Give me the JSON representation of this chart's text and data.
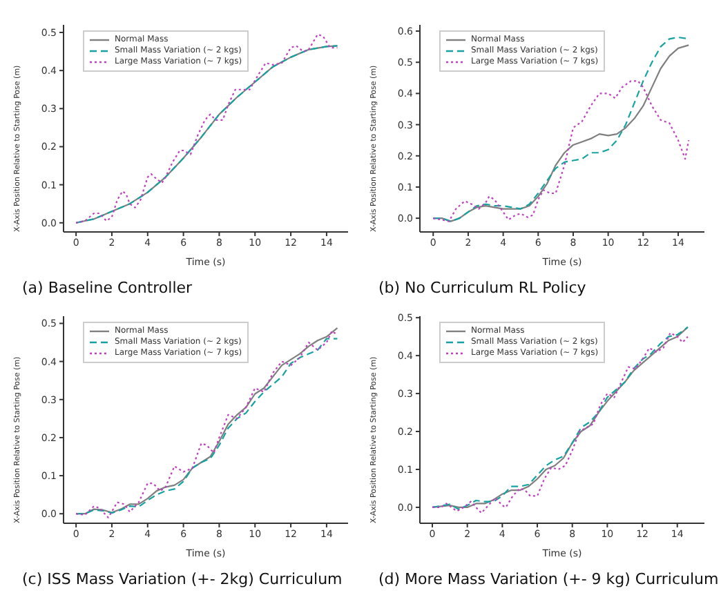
{
  "chart_data": [
    {
      "type": "line",
      "xlabel": "Time (s)",
      "ylabel": "X-Axis Position Relative to Starting Pose (m)",
      "annotations": [
        "(a) Baseline Controller"
      ],
      "xlim": [
        -0.7,
        15.2
      ],
      "ylim": [
        -0.024,
        0.52
      ],
      "xticks": [
        0,
        2,
        4,
        6,
        8,
        10,
        12,
        14
      ],
      "yticks": [
        {
          "value": 0,
          "label": "0.0"
        },
        {
          "value": 0.1,
          "label": "0.1"
        },
        {
          "value": 0.2,
          "label": "0.2"
        },
        {
          "value": 0.3,
          "label": "0.3"
        },
        {
          "value": 0.4,
          "label": "0.4"
        },
        {
          "value": 0.5,
          "label": "0.5"
        }
      ],
      "grid": false,
      "legend": "top left",
      "series": [
        {
          "name": "Normal Mass",
          "color": "#7f7f7f",
          "line_style": "solid",
          "x": [
            0,
            1,
            2,
            3,
            4,
            5,
            6,
            7,
            8,
            9,
            10,
            11,
            12,
            13,
            14,
            14.6
          ],
          "values": [
            0,
            0.01,
            0.03,
            0.05,
            0.08,
            0.12,
            0.17,
            0.225,
            0.285,
            0.33,
            0.37,
            0.41,
            0.435,
            0.455,
            0.463,
            0.465
          ]
        },
        {
          "name": "Small Mass Variation (~ 2 kgs)",
          "color": "#17a2a2",
          "line_style": "dashed",
          "x": [
            0,
            1,
            2,
            3,
            4,
            5,
            6,
            7,
            8,
            9,
            10,
            11,
            12,
            13,
            14,
            14.6
          ],
          "values": [
            0,
            0.01,
            0.03,
            0.05,
            0.08,
            0.12,
            0.17,
            0.225,
            0.285,
            0.33,
            0.37,
            0.41,
            0.435,
            0.455,
            0.463,
            0.465
          ]
        },
        {
          "name": "Large Mass Variation (~ 7 kgs)",
          "color": "#c040c0",
          "line_style": "dotted",
          "x": [
            0,
            0.5,
            1,
            1.3,
            1.7,
            2,
            2.3,
            2.6,
            2.8,
            3,
            3.3,
            3.6,
            4,
            4.2,
            4.5,
            4.8,
            5,
            5.4,
            5.8,
            6,
            6.4,
            6.8,
            7.2,
            7.5,
            7.8,
            8.2,
            8.5,
            8.9,
            9.3,
            9.7,
            10.2,
            10.6,
            11,
            11.5,
            12,
            12.3,
            12.7,
            13,
            13.5,
            13.8,
            14.2,
            14.6
          ],
          "values": [
            0,
            0.005,
            0.025,
            0.025,
            0.005,
            0.015,
            0.06,
            0.083,
            0.075,
            0.05,
            0.04,
            0.06,
            0.12,
            0.128,
            0.115,
            0.105,
            0.12,
            0.16,
            0.19,
            0.19,
            0.18,
            0.23,
            0.27,
            0.285,
            0.27,
            0.27,
            0.31,
            0.35,
            0.35,
            0.35,
            0.39,
            0.42,
            0.415,
            0.42,
            0.46,
            0.465,
            0.45,
            0.455,
            0.495,
            0.49,
            0.46,
            0.46
          ]
        }
      ]
    },
    {
      "type": "line",
      "xlabel": "Time (s)",
      "ylabel": "X-Axis Position Relative to Starting Pose (m)",
      "annotations": [
        "(b) No Curriculum RL Policy"
      ],
      "xlim": [
        -0.76,
        15.5
      ],
      "ylim": [
        -0.044,
        0.62
      ],
      "xticks": [
        0,
        2,
        4,
        6,
        8,
        10,
        12,
        14
      ],
      "yticks": [
        {
          "value": 0,
          "label": "0.0"
        },
        {
          "value": 0.1,
          "label": "0.1"
        },
        {
          "value": 0.2,
          "label": "0.2"
        },
        {
          "value": 0.3,
          "label": "0.3"
        },
        {
          "value": 0.4,
          "label": "0.4"
        },
        {
          "value": 0.5,
          "label": "0.5"
        },
        {
          "value": 0.6,
          "label": "0.6"
        }
      ],
      "grid": false,
      "legend": "top left",
      "series": [
        {
          "name": "Normal Mass",
          "color": "#7f7f7f",
          "line_style": "solid",
          "x": [
            0,
            0.5,
            1,
            1.5,
            2,
            2.5,
            3,
            3.5,
            4,
            4.5,
            5,
            5.5,
            6,
            6.5,
            7,
            7.5,
            8,
            8.5,
            9,
            9.5,
            10,
            10.5,
            11,
            11.5,
            12,
            12.5,
            13,
            13.5,
            14,
            14.6
          ],
          "values": [
            0,
            0,
            -0.01,
            0,
            0.02,
            0.035,
            0.04,
            0.035,
            0.03,
            0.03,
            0.03,
            0.04,
            0.07,
            0.11,
            0.17,
            0.21,
            0.235,
            0.245,
            0.255,
            0.27,
            0.265,
            0.27,
            0.29,
            0.32,
            0.36,
            0.42,
            0.48,
            0.52,
            0.545,
            0.555
          ]
        },
        {
          "name": "Small Mass Variation (~ 2 kgs)",
          "color": "#17a2a2",
          "line_style": "dashed",
          "x": [
            0,
            0.5,
            1,
            1.5,
            2,
            2.5,
            3,
            3.5,
            4,
            4.5,
            5,
            5.5,
            6,
            6.5,
            7,
            7.5,
            8,
            8.5,
            9,
            9.5,
            10,
            10.5,
            11,
            11.5,
            12,
            12.5,
            13,
            13.5,
            14,
            14.6
          ],
          "values": [
            0,
            0,
            -0.01,
            0,
            0.02,
            0.04,
            0.045,
            0.04,
            0.04,
            0.035,
            0.03,
            0.045,
            0.08,
            0.12,
            0.16,
            0.18,
            0.185,
            0.19,
            0.21,
            0.21,
            0.22,
            0.25,
            0.3,
            0.37,
            0.44,
            0.5,
            0.55,
            0.575,
            0.58,
            0.575
          ]
        },
        {
          "name": "Large Mass Variation (~ 7 kgs)",
          "color": "#c040c0",
          "line_style": "dotted",
          "x": [
            0,
            0.5,
            0.9,
            1.3,
            1.8,
            2.2,
            2.6,
            3,
            3.2,
            3.5,
            4,
            4.3,
            4.7,
            5,
            5.4,
            5.7,
            6,
            6.3,
            6.7,
            7,
            7.5,
            8,
            8.5,
            9,
            9.5,
            10,
            10.4,
            10.8,
            11.3,
            11.7,
            12,
            12.5,
            13,
            13.5,
            14,
            14.4,
            14.6
          ],
          "values": [
            0,
            -0.005,
            -0.01,
            0.03,
            0.055,
            0.045,
            0.03,
            0.05,
            0.07,
            0.06,
            0.02,
            -0.005,
            0.01,
            0.015,
            0.003,
            0.01,
            0.06,
            0.09,
            0.08,
            0.08,
            0.17,
            0.29,
            0.31,
            0.36,
            0.4,
            0.4,
            0.385,
            0.42,
            0.44,
            0.44,
            0.42,
            0.36,
            0.315,
            0.305,
            0.25,
            0.19,
            0.25
          ]
        }
      ]
    },
    {
      "type": "line",
      "xlabel": "Time (s)",
      "ylabel": "X-Axis Position Relative to Starting Pose (m)",
      "annotations": [
        "(c) ISS Mass Variation (+- 2kg) Curriculum"
      ],
      "xlim": [
        -0.7,
        15.2
      ],
      "ylim": [
        -0.025,
        0.519
      ],
      "xticks": [
        0,
        2,
        4,
        6,
        8,
        10,
        12,
        14
      ],
      "yticks": [
        {
          "value": 0,
          "label": "0.0"
        },
        {
          "value": 0.1,
          "label": "0.1"
        },
        {
          "value": 0.2,
          "label": "0.2"
        },
        {
          "value": 0.3,
          "label": "0.3"
        },
        {
          "value": 0.4,
          "label": "0.4"
        },
        {
          "value": 0.5,
          "label": "0.5"
        }
      ],
      "grid": false,
      "legend": "top left",
      "series": [
        {
          "name": "Normal Mass",
          "color": "#7f7f7f",
          "line_style": "solid",
          "x": [
            0,
            0.5,
            1,
            1.5,
            2,
            2.5,
            3,
            3.5,
            4,
            4.5,
            5,
            5.5,
            6,
            6.5,
            7,
            7.5,
            8,
            8.5,
            9,
            9.5,
            10,
            10.5,
            11,
            11.5,
            12,
            12.5,
            13,
            13.5,
            14,
            14.6
          ],
          "values": [
            0,
            0,
            0.012,
            0.01,
            0.003,
            0.012,
            0.025,
            0.025,
            0.04,
            0.06,
            0.07,
            0.075,
            0.09,
            0.12,
            0.135,
            0.15,
            0.19,
            0.235,
            0.26,
            0.28,
            0.315,
            0.33,
            0.36,
            0.39,
            0.405,
            0.42,
            0.44,
            0.455,
            0.465,
            0.488
          ]
        },
        {
          "name": "Small Mass Variation (~ 2 kgs)",
          "color": "#17a2a2",
          "line_style": "dashed",
          "x": [
            0,
            0.5,
            1,
            1.5,
            2,
            2.5,
            3,
            3.5,
            4,
            4.5,
            5,
            5.5,
            6,
            6.5,
            7,
            7.5,
            8,
            8.5,
            9,
            9.5,
            10,
            10.5,
            11,
            11.5,
            12,
            12.5,
            13,
            13.5,
            14,
            14.6
          ],
          "values": [
            0,
            0,
            0.01,
            0.008,
            0.002,
            0.01,
            0.02,
            0.018,
            0.035,
            0.05,
            0.06,
            0.065,
            0.085,
            0.12,
            0.135,
            0.145,
            0.18,
            0.225,
            0.25,
            0.265,
            0.295,
            0.32,
            0.34,
            0.36,
            0.395,
            0.41,
            0.42,
            0.43,
            0.46,
            0.46
          ]
        },
        {
          "name": "Large Mass Variation (~ 7 kgs)",
          "color": "#c040c0",
          "line_style": "dotted",
          "x": [
            0,
            0.5,
            1,
            1.3,
            1.8,
            2.3,
            2.7,
            3,
            3.5,
            4,
            4.3,
            4.7,
            5,
            5.5,
            6,
            6.5,
            7,
            7.3,
            7.7,
            8,
            8.5,
            9,
            9.5,
            10,
            10.5,
            11,
            11.5,
            12,
            12.5,
            13,
            13.5,
            14,
            14.3,
            14.6
          ],
          "values": [
            0,
            -0.003,
            0.02,
            0.015,
            -0.01,
            0.03,
            0.025,
            0.005,
            0.03,
            0.08,
            0.08,
            0.06,
            0.07,
            0.125,
            0.11,
            0.12,
            0.185,
            0.18,
            0.16,
            0.2,
            0.26,
            0.25,
            0.28,
            0.33,
            0.32,
            0.37,
            0.4,
            0.39,
            0.41,
            0.45,
            0.43,
            0.45,
            0.48,
            0.47
          ]
        }
      ]
    },
    {
      "type": "line",
      "xlabel": "Time (s)",
      "ylabel": "X-Axis Position Relative to Starting Pose (m)",
      "annotations": [
        "(d) More Mass Variation (+- 9 kg) Curriculum"
      ],
      "xlim": [
        -0.71,
        15.55
      ],
      "ylim": [
        -0.042,
        0.504
      ],
      "xticks": [
        0,
        2,
        4,
        6,
        8,
        10,
        12,
        14
      ],
      "yticks": [
        {
          "value": 0,
          "label": "0.0"
        },
        {
          "value": 0.1,
          "label": "0.1"
        },
        {
          "value": 0.2,
          "label": "0.2"
        },
        {
          "value": 0.3,
          "label": "0.3"
        },
        {
          "value": 0.4,
          "label": "0.4"
        },
        {
          "value": 0.5,
          "label": "0.5"
        }
      ],
      "grid": false,
      "legend": "top left",
      "series": [
        {
          "name": "Normal Mass",
          "color": "#7f7f7f",
          "line_style": "solid",
          "x": [
            0,
            1,
            1.5,
            2,
            2.5,
            3,
            3.5,
            4,
            4.5,
            5,
            5.5,
            6,
            6.5,
            7,
            7.5,
            8,
            8.5,
            9,
            9.5,
            10,
            10.5,
            11,
            11.5,
            12,
            12.5,
            13,
            13.5,
            14,
            14.6
          ],
          "values": [
            0,
            0.005,
            0,
            0,
            0.01,
            0.01,
            0.02,
            0.035,
            0.045,
            0.045,
            0.055,
            0.075,
            0.1,
            0.11,
            0.13,
            0.17,
            0.2,
            0.215,
            0.25,
            0.28,
            0.305,
            0.33,
            0.36,
            0.38,
            0.4,
            0.42,
            0.44,
            0.45,
            0.475
          ]
        },
        {
          "name": "Small Mass Variation (~ 2 kgs)",
          "color": "#17a2a2",
          "line_style": "dashed",
          "x": [
            0,
            1,
            1.5,
            2,
            2.5,
            3,
            3.5,
            4,
            4.5,
            5,
            5.5,
            6,
            6.5,
            7,
            7.5,
            8,
            8.5,
            9,
            9.5,
            10,
            10.5,
            11,
            11.5,
            12,
            12.5,
            13,
            13.5,
            14,
            14.6
          ],
          "values": [
            0,
            0.008,
            -0.005,
            0.005,
            0.018,
            0.015,
            0.015,
            0.03,
            0.055,
            0.055,
            0.06,
            0.085,
            0.11,
            0.125,
            0.135,
            0.17,
            0.21,
            0.225,
            0.25,
            0.29,
            0.31,
            0.33,
            0.365,
            0.39,
            0.405,
            0.43,
            0.45,
            0.455,
            0.475
          ]
        },
        {
          "name": "Large Mass Variation (~ 7 kgs)",
          "color": "#c040c0",
          "line_style": "dotted",
          "x": [
            0,
            0.5,
            0.8,
            1.4,
            1.8,
            2.2,
            2.5,
            2.8,
            3.2,
            3.6,
            4,
            4.2,
            4.6,
            5,
            5.3,
            5.6,
            6,
            6.4,
            6.8,
            7.2,
            7.6,
            8,
            8.4,
            8.8,
            9.2,
            9.6,
            10,
            10.4,
            10.8,
            11.2,
            11.6,
            12,
            12.4,
            12.8,
            13.2,
            13.6,
            14,
            14.3,
            14.6
          ],
          "values": [
            0,
            0,
            0.01,
            -0.01,
            0,
            0.015,
            0,
            -0.015,
            0.005,
            0.025,
            0.005,
            0,
            0.03,
            0.05,
            0.045,
            0.03,
            0.03,
            0.075,
            0.105,
            0.1,
            0.11,
            0.15,
            0.2,
            0.21,
            0.22,
            0.27,
            0.3,
            0.29,
            0.33,
            0.37,
            0.365,
            0.39,
            0.42,
            0.41,
            0.42,
            0.46,
            0.45,
            0.435,
            0.45
          ]
        }
      ]
    }
  ]
}
